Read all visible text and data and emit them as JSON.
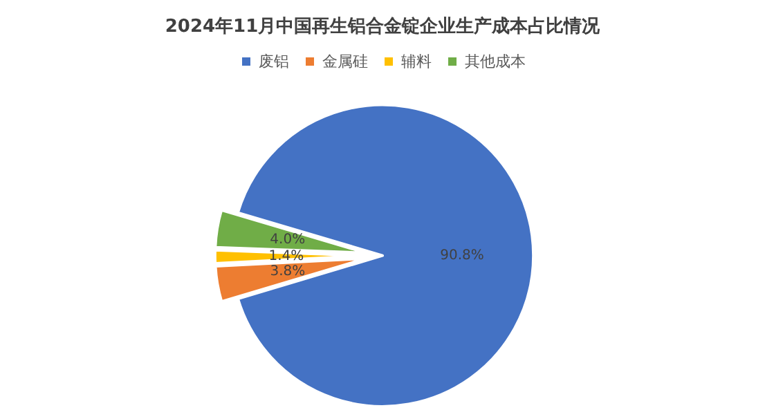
{
  "chart_data": {
    "type": "pie",
    "title": "2024年11月中国再生铝合金锭企业生产成本占比情况",
    "categories": [
      "废铝",
      "金属硅",
      "辅料",
      "其他成本"
    ],
    "values": [
      90.8,
      3.8,
      1.4,
      4.0
    ],
    "value_labels": [
      "90.8%",
      "3.8%",
      "1.4%",
      "4.0%"
    ],
    "colors": [
      "#4472c4",
      "#ed7d31",
      "#ffc000",
      "#70ad47"
    ],
    "legend": "top"
  }
}
